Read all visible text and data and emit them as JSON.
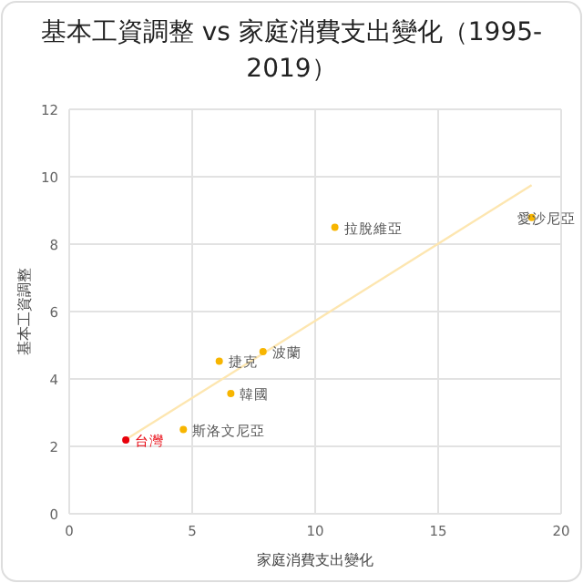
{
  "chart_data": {
    "type": "scatter",
    "title": "基本工資調整 vs 家庭消費支出變化（1995-2019）",
    "xlabel": "家庭消費支出變化",
    "ylabel": "基本工資調整",
    "xlim": [
      0,
      20
    ],
    "ylim": [
      0,
      12
    ],
    "xticks": [
      0,
      5,
      10,
      15,
      20
    ],
    "yticks": [
      0,
      2,
      4,
      6,
      8,
      10,
      12
    ],
    "grid": true,
    "series": [
      {
        "marker": "circle",
        "color": "#f7b500",
        "colors": [
          "#e8000b",
          "#f7b500",
          "#f7b500",
          "#f7b500",
          "#f7b500",
          "#f7b500",
          "#f7b500"
        ],
        "x": [
          2.3,
          4.64,
          6.1,
          7.88,
          6.57,
          10.8,
          18.8
        ],
        "values": [
          2.19,
          2.5,
          4.53,
          4.81,
          3.57,
          8.5,
          8.79
        ]
      },
      {
        "type": "line",
        "color": "#fde6b0",
        "x": [
          2.3,
          18.8
        ],
        "values": [
          2.2,
          9.75
        ]
      }
    ],
    "annotations": [
      {
        "text": "台灣",
        "x": 2.3,
        "y": 2.19
      },
      {
        "text": "斯洛文尼亞",
        "x": 4.64,
        "y": 2.5
      },
      {
        "text": "捷克",
        "x": 6.1,
        "y": 4.53
      },
      {
        "text": "波蘭",
        "x": 7.88,
        "y": 4.81
      },
      {
        "text": "韓國",
        "x": 6.57,
        "y": 3.57
      },
      {
        "text": "拉脫維亞",
        "x": 10.8,
        "y": 8.5
      },
      {
        "text": "愛沙尼亞",
        "x": 18.8,
        "y": 8.79
      }
    ]
  }
}
